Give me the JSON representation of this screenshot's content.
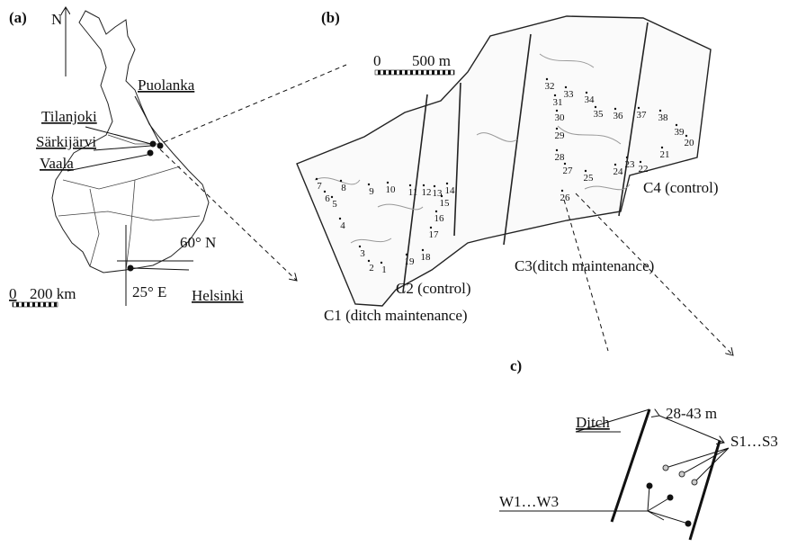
{
  "panels": {
    "a": "(a)",
    "b": "(b)",
    "c": "c)"
  },
  "map_a": {
    "north": "N",
    "places": [
      "Puolanka",
      "Tilanjoki",
      "Särkijärvi",
      "Vaala",
      "Helsinki"
    ],
    "latitude": "60° N",
    "longitude": "25° E",
    "scale_zero": "0",
    "scale_length": "200 km"
  },
  "map_b": {
    "scale_zero": "0",
    "scale_length": "500 m",
    "compartments": [
      "C1 (ditch maintenance)",
      "C2 (control)",
      "C3(ditch maintenance)",
      "C4 (control)"
    ],
    "points": [
      "1",
      "2",
      "3",
      "4",
      "5",
      "6",
      "7",
      "8",
      "9",
      "10",
      "11",
      "12",
      "13",
      "14",
      "15",
      "16",
      "17",
      "18",
      "19",
      "20",
      "21",
      "22",
      "23",
      "24",
      "25",
      "26",
      "27",
      "28",
      "29",
      "30",
      "31",
      "32",
      "33",
      "34",
      "35",
      "36",
      "37",
      "38",
      "39"
    ]
  },
  "diagram_c": {
    "ditch": "Ditch",
    "distance": "28-43 m",
    "surface": "S1…S3",
    "wells": "W1…W3"
  }
}
